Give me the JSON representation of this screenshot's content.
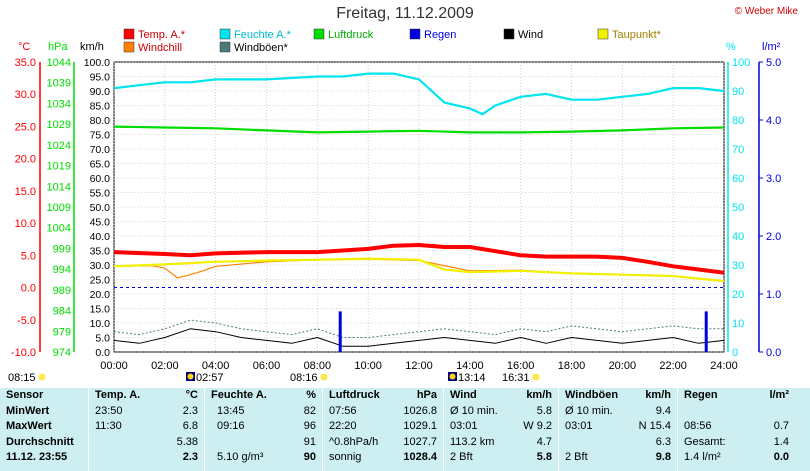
{
  "header": {
    "title": "Freitag, 11.12.2009",
    "copyright": "© Weber Mike"
  },
  "colors": {
    "temp": "#ff0000",
    "humidity": "#00e5ee",
    "pressure": "#00dd00",
    "rain": "#0000dd",
    "wind": "#000000",
    "dewpoint": "#f0f000",
    "windchill": "#ff8000",
    "gusts": "#4a7a7a"
  },
  "chart_data": {
    "type": "line",
    "title": "Freitag, 11.12.2009",
    "x_ticks": [
      "00:00",
      "02:00",
      "04:00",
      "06:00",
      "08:00",
      "10:00",
      "12:00",
      "14:00",
      "16:00",
      "18:00",
      "20:00",
      "22:00",
      "24:00"
    ],
    "axes": {
      "temp": {
        "label": "°C",
        "ticks": [
          "35.0",
          "30.0",
          "25.0",
          "20.0",
          "15.0",
          "10.0",
          "5.0",
          "0.0",
          "-5.0",
          "-10.0"
        ],
        "range": [
          -10,
          35
        ]
      },
      "pressure": {
        "label": "hPa",
        "ticks": [
          "1044",
          "1039",
          "1034",
          "1029",
          "1024",
          "1019",
          "1014",
          "1009",
          "1004",
          "999",
          "994",
          "989",
          "984",
          "979",
          "974"
        ],
        "range": [
          974,
          1044
        ]
      },
      "wind": {
        "label": "km/h",
        "ticks": [
          "100.0",
          "95.0",
          "90.0",
          "85.0",
          "80.0",
          "75.0",
          "70.0",
          "65.0",
          "60.0",
          "55.0",
          "50.0",
          "45.0",
          "40.0",
          "35.0",
          "30.0",
          "25.0",
          "20.0",
          "15.0",
          "10.0",
          "5.0",
          "0.0"
        ],
        "range": [
          0,
          100
        ]
      },
      "humidity": {
        "label": "%",
        "ticks": [
          "100",
          "90",
          "80",
          "70",
          "60",
          "50",
          "40",
          "30",
          "20",
          "10",
          "0"
        ],
        "range": [
          0,
          100
        ]
      },
      "rain": {
        "label": "l/m²",
        "ticks": [
          "5.0",
          "4.0",
          "3.0",
          "2.0",
          "1.0",
          "0.0"
        ],
        "range": [
          0,
          5
        ]
      }
    },
    "legend": [
      {
        "name": "Temp. A.*",
        "color_key": "temp"
      },
      {
        "name": "Feuchte A.*",
        "color_key": "humidity"
      },
      {
        "name": "Luftdruck",
        "color_key": "pressure"
      },
      {
        "name": "Regen",
        "color_key": "rain"
      },
      {
        "name": "Wind",
        "color_key": "wind"
      },
      {
        "name": "Taupunkt*",
        "color_key": "dewpoint"
      },
      {
        "name": "Windchill",
        "color_key": "windchill"
      },
      {
        "name": "Windböen*",
        "color_key": "gusts"
      }
    ],
    "series": [
      {
        "name": "Temp. A.*",
        "axis": "temp",
        "hours": [
          0,
          2,
          3,
          4,
          6,
          8,
          10,
          11,
          12,
          13,
          14,
          16,
          17,
          19,
          20,
          21,
          22,
          23,
          24
        ],
        "values": [
          5.5,
          5.2,
          5.0,
          5.3,
          5.5,
          5.5,
          6.0,
          6.5,
          6.6,
          6.3,
          6.3,
          5.0,
          4.8,
          4.8,
          4.6,
          4.0,
          3.3,
          2.8,
          2.3
        ]
      },
      {
        "name": "Taupunkt*",
        "axis": "temp",
        "hours": [
          0,
          2,
          4,
          6,
          8,
          10,
          12,
          13,
          14,
          16,
          18,
          20,
          22,
          24
        ],
        "values": [
          3.3,
          3.6,
          4.0,
          4.2,
          4.3,
          4.5,
          4.3,
          2.8,
          2.4,
          2.6,
          2.2,
          2.0,
          1.8,
          1.0
        ]
      },
      {
        "name": "Windchill",
        "axis": "temp",
        "hours": [
          0,
          1.5,
          2.0,
          2.5,
          3.0,
          3.5,
          4.0,
          6,
          8,
          10,
          12,
          14,
          16,
          18,
          20,
          22,
          24
        ],
        "values": [
          3.3,
          3.4,
          3.0,
          1.5,
          2.0,
          2.6,
          3.3,
          4.0,
          4.3,
          4.4,
          4.2,
          2.6,
          2.7,
          2.2,
          2.0,
          1.8,
          1.0
        ]
      },
      {
        "name": "Feuchte A.*",
        "axis": "humidity",
        "hours": [
          0,
          1,
          2,
          3,
          4,
          6,
          8,
          9,
          10,
          11,
          12,
          12.5,
          13,
          14,
          14.5,
          15,
          16,
          17,
          18,
          19,
          20,
          21,
          22,
          23,
          24
        ],
        "values": [
          91,
          92,
          93,
          93,
          94,
          94,
          95,
          95,
          96,
          96,
          94,
          90,
          86,
          84,
          82,
          85,
          88,
          89,
          87,
          87,
          88,
          89,
          91,
          91,
          90
        ]
      },
      {
        "name": "Luftdruck",
        "axis": "pressure",
        "hours": [
          0,
          2,
          4,
          6,
          8,
          10,
          12,
          14,
          16,
          18,
          20,
          22,
          24
        ],
        "values": [
          1028.4,
          1028.2,
          1028.0,
          1027.5,
          1027.0,
          1027.2,
          1027.4,
          1027.0,
          1027.0,
          1027.2,
          1027.5,
          1028.0,
          1028.2
        ]
      },
      {
        "name": "Wind",
        "axis": "wind",
        "hours": [
          0,
          1,
          2,
          3,
          4,
          5,
          6,
          7,
          8,
          9,
          10,
          11,
          12,
          13,
          14,
          15,
          16,
          17,
          18,
          19,
          20,
          21,
          22,
          23,
          24
        ],
        "values": [
          4,
          3,
          5,
          8,
          7,
          5,
          4,
          3,
          5,
          2,
          2,
          3,
          4,
          5,
          4,
          3,
          5,
          3,
          5,
          4,
          3,
          4,
          5,
          3,
          4
        ]
      },
      {
        "name": "Windböen*",
        "axis": "wind",
        "hours": [
          0,
          1,
          2,
          3,
          4,
          5,
          6,
          7,
          8,
          9,
          10,
          11,
          12,
          13,
          14,
          15,
          16,
          17,
          18,
          19,
          20,
          21,
          22,
          23,
          24
        ],
        "values": [
          7,
          6,
          8,
          11,
          10,
          8,
          7,
          6,
          8,
          5,
          5,
          6,
          7,
          8,
          7,
          6,
          8,
          7,
          9,
          8,
          7,
          8,
          9,
          8,
          8
        ]
      },
      {
        "name": "Regen",
        "axis": "rain",
        "type": "bar",
        "hours": [
          8.9,
          23.3
        ],
        "values": [
          0.7,
          0.7
        ]
      }
    ],
    "reference_line": {
      "axis": "temp",
      "value": 0.0
    },
    "events": [
      {
        "label": "08:15",
        "icon": "sunrise"
      },
      {
        "label": "02:57",
        "icon": "moonset"
      },
      {
        "label": "08:16",
        "icon": "sun"
      },
      {
        "label": "13:14",
        "icon": "moonrise"
      },
      {
        "label": "16:31",
        "icon": "sunset"
      }
    ]
  },
  "stats": {
    "sensor": {
      "header": "Sensor",
      "rows": [
        "MinWert",
        "MaxWert",
        "Durchschnitt",
        "11.12. 23:55"
      ]
    },
    "temp": {
      "header": "Temp. A.",
      "unit": "°C",
      "rows": [
        {
          "t": "23:50",
          "v": "2.3"
        },
        {
          "t": "11:30",
          "v": "6.8"
        },
        {
          "t": "",
          "v": "5.38"
        },
        {
          "t": "",
          "v": "2.3"
        }
      ]
    },
    "humidity": {
      "header": "Feuchte A.",
      "unit": "%",
      "rows": [
        {
          "t": "13:45",
          "v": "82"
        },
        {
          "t": "09:16",
          "v": "96"
        },
        {
          "t": "",
          "v": "91"
        },
        {
          "t": "5.10 g/m³",
          "v": "90"
        }
      ]
    },
    "pressure": {
      "header": "Luftdruck",
      "unit": "hPa",
      "rows": [
        {
          "t": "07:56",
          "v": "1026.8"
        },
        {
          "t": "22:20",
          "v": "1029.1"
        },
        {
          "t": "^0.8hPa/h",
          "v": "1027.7"
        },
        {
          "t": "sonnig",
          "v": "1028.4"
        }
      ]
    },
    "wind": {
      "header": "Wind",
      "unit": "km/h",
      "rows": [
        {
          "t": "Ø 10 min.",
          "v": "5.8"
        },
        {
          "t": "03:01",
          "v": "W 9.2"
        },
        {
          "t": "113.2 km",
          "v": "4.7"
        },
        {
          "t": "2 Bft",
          "v": "5.8"
        }
      ]
    },
    "gusts": {
      "header": "Windböen",
      "unit": "km/h",
      "rows": [
        {
          "t": "Ø 10 min.",
          "v": "9.4"
        },
        {
          "t": "03:01",
          "v": "N 15.4"
        },
        {
          "t": "",
          "v": "6.3"
        },
        {
          "t": "2 Bft",
          "v": "9.8"
        }
      ]
    },
    "rain": {
      "header": "Regen",
      "unit": "l/m²",
      "rows": [
        {
          "t": "",
          "v": ""
        },
        {
          "t": "08:56",
          "v": "0.7"
        },
        {
          "t": "Gesamt:",
          "v": "1.4"
        },
        {
          "t": "1.4 l/m²",
          "v": "0.0"
        }
      ]
    }
  }
}
